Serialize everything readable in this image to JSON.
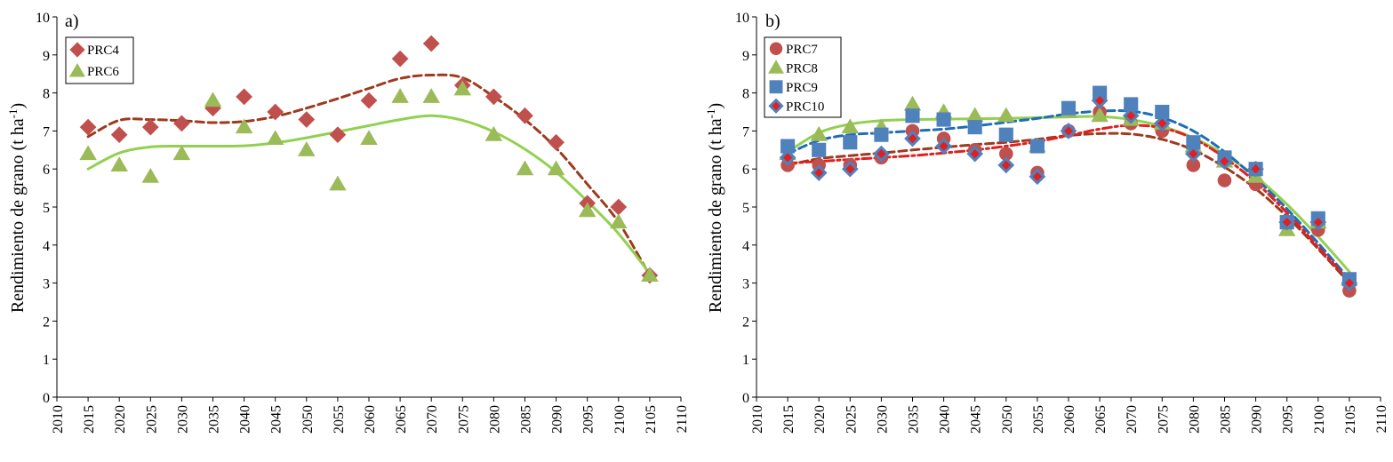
{
  "chart_data": [
    {
      "type": "scatter",
      "panel_label": "a)",
      "ylabel_main": "Rendimiento de grano (t ha",
      "ylabel_sup": "-1",
      "ylabel_close": ")",
      "xlim": [
        2010,
        2110
      ],
      "ylim": [
        0,
        10
      ],
      "x_ticks": [
        "2010",
        "2015",
        "2020",
        "2025",
        "2030",
        "2035",
        "2040",
        "2045",
        "2050",
        "2055",
        "2060",
        "2065",
        "2070",
        "2075",
        "2080",
        "2085",
        "2090",
        "2095",
        "2100",
        "2105",
        "2110"
      ],
      "y_ticks": [
        "0",
        "1",
        "2",
        "3",
        "4",
        "5",
        "6",
        "7",
        "8",
        "9",
        "10"
      ],
      "legend_position": "top-left",
      "series": [
        {
          "name": "PRC4",
          "marker": "diamond",
          "color": "#C0504D",
          "trend_color": "#9E3A1E",
          "trend_style": "dashed",
          "x": [
            2015,
            2020,
            2025,
            2030,
            2035,
            2040,
            2045,
            2050,
            2055,
            2060,
            2065,
            2070,
            2075,
            2080,
            2085,
            2090,
            2095,
            2100,
            2105
          ],
          "y": [
            7.1,
            6.9,
            7.1,
            7.2,
            7.6,
            7.9,
            7.5,
            7.3,
            6.9,
            7.8,
            8.9,
            9.3,
            8.2,
            7.9,
            7.4,
            6.7,
            5.1,
            5.0,
            3.2
          ],
          "trend_y": [
            6.85,
            7.28,
            7.3,
            7.27,
            7.22,
            7.25,
            7.38,
            7.6,
            7.85,
            8.12,
            8.38,
            8.47,
            8.4,
            7.9,
            7.3,
            6.55,
            5.6,
            4.6,
            3.2
          ]
        },
        {
          "name": "PRC6",
          "marker": "triangle",
          "color": "#9BBB59",
          "trend_color": "#92D050",
          "trend_style": "solid",
          "x": [
            2015,
            2020,
            2025,
            2030,
            2035,
            2040,
            2045,
            2050,
            2055,
            2060,
            2065,
            2070,
            2075,
            2080,
            2085,
            2090,
            2095,
            2100,
            2105
          ],
          "y": [
            6.4,
            6.1,
            5.8,
            6.4,
            7.8,
            7.1,
            6.8,
            6.5,
            5.6,
            6.8,
            7.9,
            7.9,
            8.1,
            6.9,
            6.0,
            6.0,
            4.9,
            4.6,
            3.2
          ],
          "trend_y": [
            6.0,
            6.42,
            6.58,
            6.6,
            6.6,
            6.61,
            6.69,
            6.82,
            6.98,
            7.14,
            7.3,
            7.4,
            7.28,
            6.98,
            6.52,
            5.92,
            5.15,
            4.3,
            3.25
          ]
        }
      ]
    },
    {
      "type": "scatter",
      "panel_label": "b)",
      "ylabel_main": "Rendimiento de grano (t ha",
      "ylabel_sup": "-1",
      "ylabel_close": ")",
      "xlim": [
        2010,
        2110
      ],
      "ylim": [
        0,
        10
      ],
      "x_ticks": [
        "2010",
        "2015",
        "2020",
        "2025",
        "2030",
        "2035",
        "2040",
        "2045",
        "2050",
        "2055",
        "2060",
        "2065",
        "2070",
        "2075",
        "2080",
        "2085",
        "2090",
        "2095",
        "2100",
        "2105",
        "2110"
      ],
      "y_ticks": [
        "0",
        "1",
        "2",
        "3",
        "4",
        "5",
        "6",
        "7",
        "8",
        "9",
        "10"
      ],
      "legend_position": "top-left",
      "series": [
        {
          "name": "PRC7",
          "marker": "circle",
          "color": "#C0504D",
          "trend_color": "#9E3A1E",
          "trend_style": "dashed",
          "x": [
            2015,
            2020,
            2025,
            2030,
            2035,
            2040,
            2045,
            2050,
            2055,
            2060,
            2065,
            2070,
            2075,
            2080,
            2085,
            2090,
            2095,
            2100,
            2105
          ],
          "y": [
            6.1,
            6.1,
            6.1,
            6.3,
            7.0,
            6.8,
            6.5,
            6.4,
            5.9,
            7.0,
            7.5,
            7.2,
            7.0,
            6.1,
            5.7,
            5.6,
            4.6,
            4.4,
            2.8
          ],
          "trend_y": [
            6.1,
            6.27,
            6.35,
            6.42,
            6.5,
            6.57,
            6.64,
            6.7,
            6.78,
            6.88,
            6.93,
            6.92,
            6.78,
            6.5,
            6.05,
            5.48,
            4.75,
            3.9,
            3.0
          ]
        },
        {
          "name": "PRC8",
          "marker": "triangle",
          "color": "#9BBB59",
          "trend_color": "#92D050",
          "trend_style": "solid",
          "x": [
            2015,
            2020,
            2025,
            2030,
            2035,
            2040,
            2045,
            2050,
            2055,
            2060,
            2065,
            2070,
            2075,
            2080,
            2085,
            2090,
            2095,
            2100,
            2105
          ],
          "y": [
            6.4,
            6.9,
            7.1,
            7.1,
            7.7,
            7.5,
            7.4,
            7.4,
            6.6,
            7.5,
            7.4,
            7.3,
            7.2,
            6.6,
            6.2,
            5.8,
            4.4,
            4.6,
            3.1
          ],
          "trend_y": [
            6.45,
            6.95,
            7.18,
            7.27,
            7.3,
            7.31,
            7.32,
            7.33,
            7.35,
            7.37,
            7.38,
            7.3,
            7.12,
            6.82,
            6.38,
            5.8,
            5.07,
            4.22,
            3.3
          ]
        },
        {
          "name": "PRC9",
          "marker": "square",
          "color": "#4F81BD",
          "trend_color": "#1F6DB5",
          "trend_style": "dashed",
          "x": [
            2015,
            2020,
            2025,
            2030,
            2035,
            2040,
            2045,
            2050,
            2055,
            2060,
            2065,
            2070,
            2075,
            2080,
            2085,
            2090,
            2095,
            2100,
            2105
          ],
          "y": [
            6.6,
            6.5,
            6.7,
            6.9,
            7.4,
            7.3,
            7.1,
            6.9,
            6.6,
            7.6,
            8.0,
            7.7,
            7.5,
            6.7,
            6.3,
            6.0,
            4.6,
            4.7,
            3.1
          ],
          "trend_y": [
            6.4,
            6.75,
            6.9,
            6.95,
            7.0,
            7.05,
            7.13,
            7.23,
            7.33,
            7.45,
            7.52,
            7.52,
            7.35,
            7.0,
            6.45,
            5.75,
            4.95,
            4.05,
            3.1
          ]
        },
        {
          "name": "PRC10",
          "marker": "diamond",
          "color": "#4F81BD",
          "inner_color": "#E02020",
          "trend_color": "#E02020",
          "trend_style": "dashdot",
          "x": [
            2015,
            2020,
            2025,
            2030,
            2035,
            2040,
            2045,
            2050,
            2055,
            2060,
            2065,
            2070,
            2075,
            2080,
            2085,
            2090,
            2095,
            2100,
            2105
          ],
          "y": [
            6.3,
            5.9,
            6.0,
            6.4,
            6.8,
            6.6,
            6.4,
            6.1,
            5.8,
            7.0,
            7.8,
            7.4,
            7.2,
            6.4,
            6.2,
            6.0,
            4.6,
            4.6,
            3.0
          ],
          "trend_y": [
            6.15,
            6.2,
            6.25,
            6.3,
            6.35,
            6.42,
            6.5,
            6.6,
            6.72,
            6.88,
            7.05,
            7.15,
            7.08,
            6.8,
            6.3,
            5.65,
            4.85,
            3.95,
            3.05
          ]
        }
      ]
    }
  ]
}
